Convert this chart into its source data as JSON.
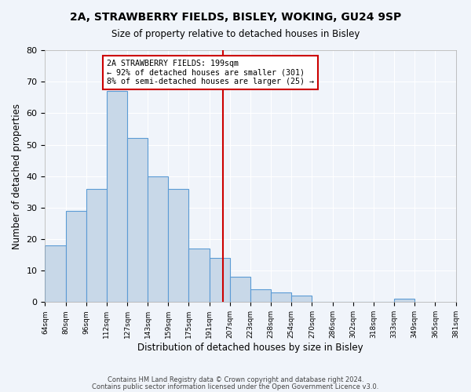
{
  "title1": "2A, STRAWBERRY FIELDS, BISLEY, WOKING, GU24 9SP",
  "title2": "Size of property relative to detached houses in Bisley",
  "xlabel": "Distribution of detached houses by size in Bisley",
  "ylabel": "Number of detached properties",
  "bar_values": [
    18,
    29,
    36,
    67,
    52,
    40,
    36,
    17,
    14,
    8,
    4,
    3,
    2,
    0,
    0,
    0,
    0,
    1
  ],
  "bin_labels": [
    "64sqm",
    "80sqm",
    "96sqm",
    "112sqm",
    "127sqm",
    "143sqm",
    "159sqm",
    "175sqm",
    "191sqm",
    "207sqm",
    "223sqm",
    "238sqm",
    "254sqm",
    "270sqm",
    "286sqm",
    "302sqm",
    "318sqm",
    "333sqm",
    "349sqm"
  ],
  "extra_tick_labels": [
    "365sqm",
    "381sqm"
  ],
  "bar_color": "#c8d8e8",
  "bar_edge_color": "#5b9bd5",
  "vline_x": 8.65,
  "vline_color": "#cc0000",
  "annotation_title": "2A STRAWBERRY FIELDS: 199sqm",
  "annotation_line1": "← 92% of detached houses are smaller (301)",
  "annotation_line2": "8% of semi-detached houses are larger (25) →",
  "annotation_box_color": "#ffffff",
  "annotation_border_color": "#cc0000",
  "ylim": [
    0,
    80
  ],
  "yticks": [
    0,
    10,
    20,
    30,
    40,
    50,
    60,
    70,
    80
  ],
  "background_color": "#f0f4fa",
  "footer1": "Contains HM Land Registry data © Crown copyright and database right 2024.",
  "footer2": "Contains public sector information licensed under the Open Government Licence v3.0."
}
